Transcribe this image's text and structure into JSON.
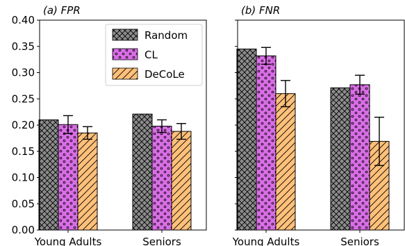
{
  "figure": {
    "panels": [
      {
        "title": "(a) FPR"
      },
      {
        "title": "(b) FNR"
      }
    ]
  },
  "legend": {
    "placement": "top-right of panel (a)",
    "entries": [
      "Random",
      "CL",
      "DeCoLe"
    ]
  },
  "colors": {
    "Random": "#8c8c8c",
    "CL": "#d96ee6",
    "DeCoLe": "#ffc07a",
    "edge": "#000000"
  },
  "chart_data": [
    {
      "type": "bar",
      "title": "(a) FPR",
      "categories": [
        "Young Adults",
        "Seniors"
      ],
      "ylim": [
        0,
        0.4
      ],
      "yticks": [
        "0.00",
        "0.05",
        "0.10",
        "0.15",
        "0.20",
        "0.25",
        "0.30",
        "0.35",
        "0.40"
      ],
      "grid": false,
      "series": [
        {
          "name": "Random",
          "hatch": "crosshatch",
          "values": [
            0.21,
            0.221
          ],
          "err": [
            0,
            0
          ]
        },
        {
          "name": "CL",
          "hatch": "dots",
          "values": [
            0.201,
            0.198
          ],
          "err": [
            0.017,
            0.012
          ]
        },
        {
          "name": "DeCoLe",
          "hatch": "diagonal",
          "values": [
            0.185,
            0.188
          ],
          "err": [
            0.012,
            0.015
          ]
        }
      ]
    },
    {
      "type": "bar",
      "title": "(b) FNR",
      "categories": [
        "Young Adults",
        "Seniors"
      ],
      "ylim": [
        0,
        0.4
      ],
      "yticks": [],
      "grid": false,
      "series": [
        {
          "name": "Random",
          "hatch": "crosshatch",
          "values": [
            0.345,
            0.271
          ],
          "err": [
            0,
            0
          ]
        },
        {
          "name": "CL",
          "hatch": "dots",
          "values": [
            0.332,
            0.277
          ],
          "err": [
            0.016,
            0.018
          ]
        },
        {
          "name": "DeCoLe",
          "hatch": "diagonal",
          "values": [
            0.26,
            0.169
          ],
          "err": [
            0.025,
            0.046
          ]
        }
      ]
    }
  ]
}
